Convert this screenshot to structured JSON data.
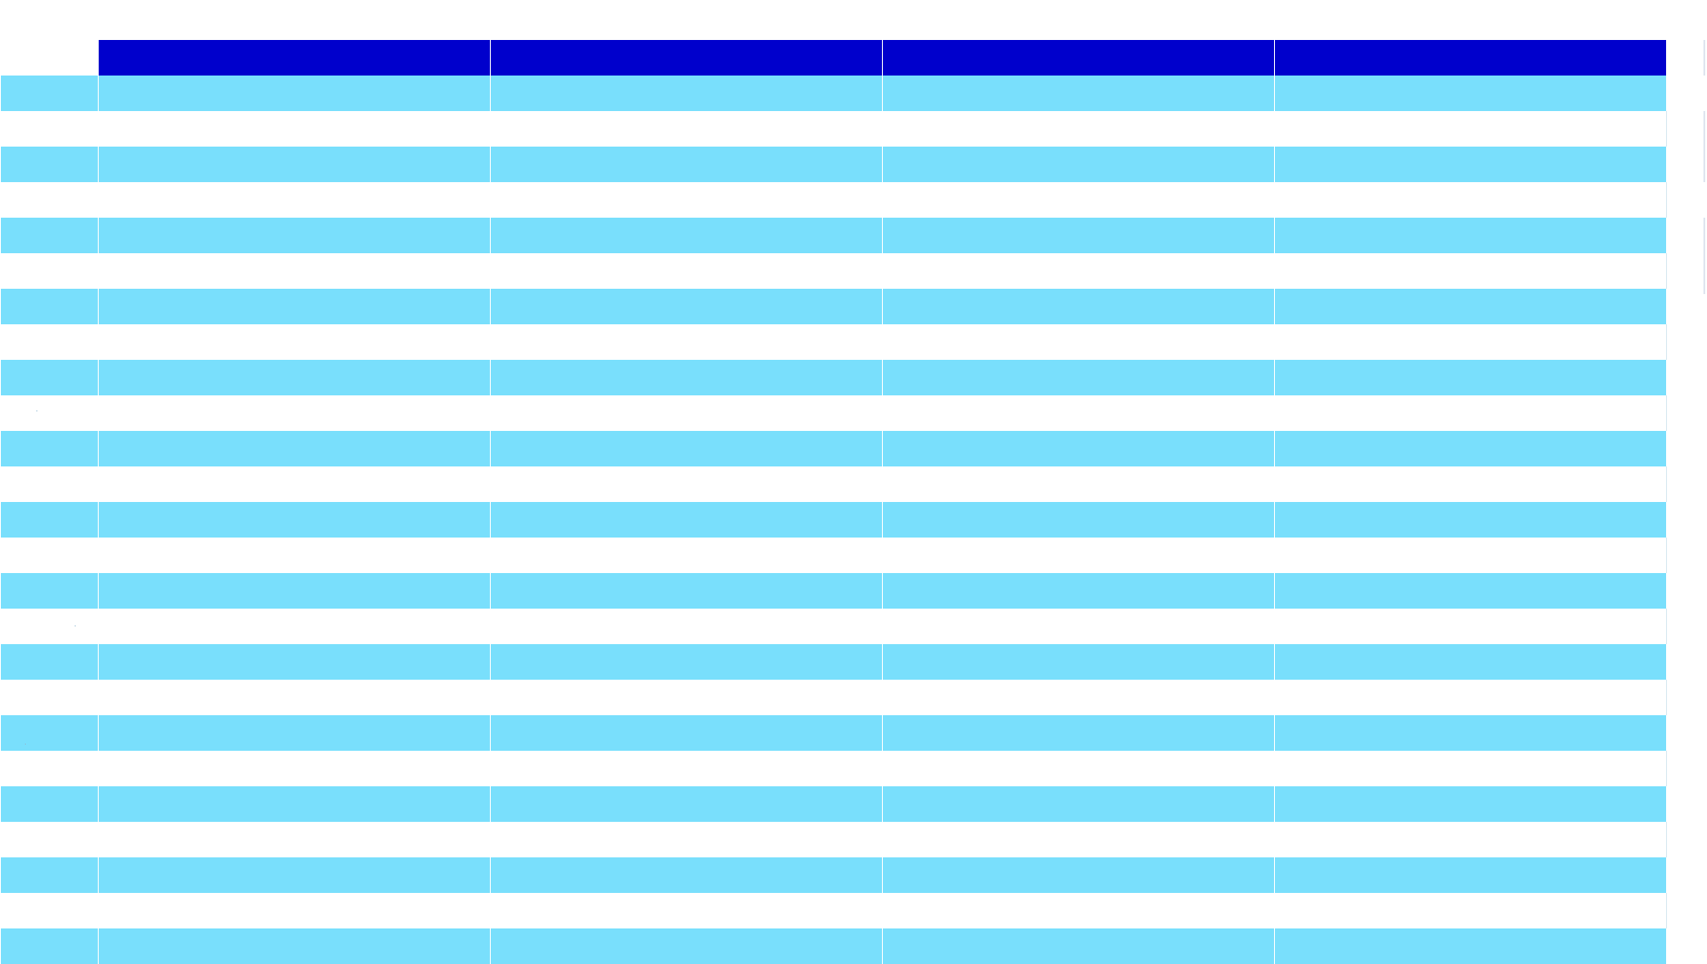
{
  "sheet": {
    "header_color": "#0000cc",
    "band_color": "#79dffc",
    "background_color": "#ffffff",
    "columns": [
      "",
      "",
      "",
      ""
    ],
    "rows": [
      {
        "label": "",
        "cells": [
          "",
          "",
          "",
          ""
        ],
        "band": "blue"
      },
      {
        "label": "",
        "cells": [
          "",
          "",
          "",
          ""
        ],
        "band": "white"
      },
      {
        "label": "",
        "cells": [
          "",
          "",
          "",
          ""
        ],
        "band": "blue"
      },
      {
        "label": "",
        "cells": [
          "",
          "",
          "",
          ""
        ],
        "band": "white"
      },
      {
        "label": "",
        "cells": [
          "",
          "",
          "",
          ""
        ],
        "band": "blue"
      },
      {
        "label": "",
        "cells": [
          "",
          "",
          "",
          ""
        ],
        "band": "white"
      },
      {
        "label": "",
        "cells": [
          "",
          "",
          "",
          ""
        ],
        "band": "blue"
      },
      {
        "label": "",
        "cells": [
          "",
          "",
          "",
          ""
        ],
        "band": "white"
      },
      {
        "label": "",
        "cells": [
          "",
          "",
          "",
          ""
        ],
        "band": "blue"
      },
      {
        "label": "",
        "cells": [
          "",
          "",
          "",
          ""
        ],
        "band": "white"
      },
      {
        "label": "",
        "cells": [
          "",
          "",
          "",
          ""
        ],
        "band": "blue"
      },
      {
        "label": "",
        "cells": [
          "",
          "",
          "",
          ""
        ],
        "band": "white"
      },
      {
        "label": "",
        "cells": [
          "",
          "",
          "",
          ""
        ],
        "band": "blue"
      },
      {
        "label": "",
        "cells": [
          "",
          "",
          "",
          ""
        ],
        "band": "white"
      },
      {
        "label": "",
        "cells": [
          "",
          "",
          "",
          ""
        ],
        "band": "blue"
      },
      {
        "label": "",
        "cells": [
          "",
          "",
          "",
          ""
        ],
        "band": "white"
      },
      {
        "label": "",
        "cells": [
          "",
          "",
          "",
          ""
        ],
        "band": "blue"
      },
      {
        "label": "",
        "cells": [
          "",
          "",
          "",
          ""
        ],
        "band": "white"
      },
      {
        "label": "",
        "cells": [
          "",
          "",
          "",
          ""
        ],
        "band": "blue"
      },
      {
        "label": "",
        "cells": [
          "",
          "",
          "",
          ""
        ],
        "band": "white"
      },
      {
        "label": "",
        "cells": [
          "",
          "",
          "",
          ""
        ],
        "band": "blue"
      },
      {
        "label": "",
        "cells": [
          "",
          "",
          "",
          ""
        ],
        "band": "white"
      },
      {
        "label": "",
        "cells": [
          "",
          "",
          "",
          ""
        ],
        "band": "blue"
      },
      {
        "label": "",
        "cells": [
          "",
          "",
          "",
          ""
        ],
        "band": "white"
      },
      {
        "label": "",
        "cells": [
          "",
          "",
          "",
          ""
        ],
        "band": "blue"
      }
    ]
  }
}
